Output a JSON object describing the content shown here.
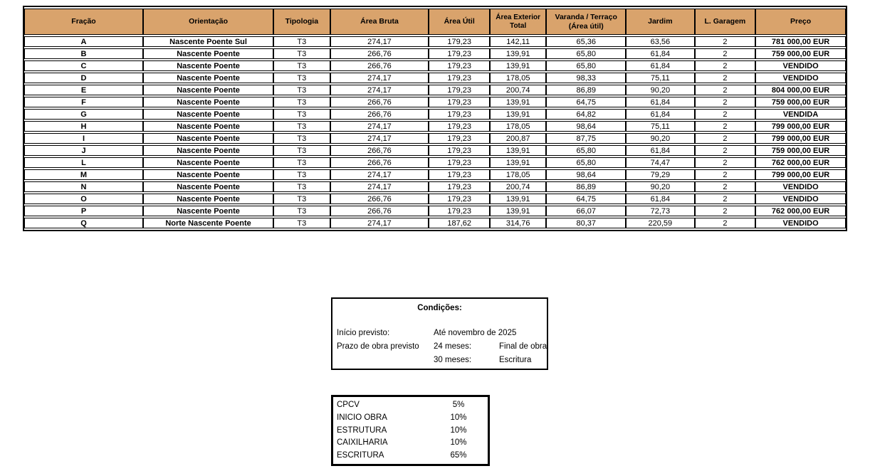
{
  "colors": {
    "header_bg": "#d9a36c",
    "border": "#000000"
  },
  "table": {
    "columns": [
      "Fração",
      "Orientação",
      "Tipologia",
      "Área Bruta",
      "Área Útil",
      "Área Exterior Total",
      "Varanda / Terraço (Área útil)",
      "Jardim",
      "L. Garagem",
      "Preço"
    ],
    "rows": [
      [
        "A",
        "Nascente Poente Sul",
        "T3",
        "274,17",
        "179,23",
        "142,11",
        "65,36",
        "63,56",
        "2",
        "781 000,00 EUR"
      ],
      [
        "B",
        "Nascente Poente",
        "T3",
        "266,76",
        "179,23",
        "139,91",
        "65,80",
        "61,84",
        "2",
        "759 000,00 EUR"
      ],
      [
        "C",
        "Nascente Poente",
        "T3",
        "266,76",
        "179,23",
        "139,91",
        "65,80",
        "61,84",
        "2",
        "VENDIDO"
      ],
      [
        "D",
        "Nascente Poente",
        "T3",
        "274,17",
        "179,23",
        "178,05",
        "98,33",
        "75,11",
        "2",
        "VENDIDO"
      ],
      [
        "E",
        "Nascente Poente",
        "T3",
        "274,17",
        "179,23",
        "200,74",
        "86,89",
        "90,20",
        "2",
        "804 000,00 EUR"
      ],
      [
        "F",
        "Nascente Poente",
        "T3",
        "266,76",
        "179,23",
        "139,91",
        "64,75",
        "61,84",
        "2",
        "759 000,00 EUR"
      ],
      [
        "G",
        "Nascente Poente",
        "T3",
        "266,76",
        "179,23",
        "139,91",
        "64,82",
        "61,84",
        "2",
        "VENDIDA"
      ],
      [
        "H",
        "Nascente Poente",
        "T3",
        "274,17",
        "179,23",
        "178,05",
        "98,64",
        "75,11",
        "2",
        "799 000,00 EUR"
      ],
      [
        "I",
        "Nascente Poente",
        "T3",
        "274,17",
        "179,23",
        "200,87",
        "87,75",
        "90,20",
        "2",
        "799 000,00 EUR"
      ],
      [
        "J",
        "Nascente Poente",
        "T3",
        "266,76",
        "179,23",
        "139,91",
        "65,80",
        "61,84",
        "2",
        "759 000,00 EUR"
      ],
      [
        "L",
        "Nascente Poente",
        "T3",
        "266,76",
        "179,23",
        "139,91",
        "65,80",
        "74,47",
        "2",
        "762 000,00 EUR"
      ],
      [
        "M",
        "Nascente Poente",
        "T3",
        "274,17",
        "179,23",
        "178,05",
        "98,64",
        "79,29",
        "2",
        "799 000,00 EUR"
      ],
      [
        "N",
        "Nascente Poente",
        "T3",
        "274,17",
        "179,23",
        "200,74",
        "86,89",
        "90,20",
        "2",
        "VENDIDO"
      ],
      [
        "O",
        "Nascente Poente",
        "T3",
        "266,76",
        "179,23",
        "139,91",
        "64,75",
        "61,84",
        "2",
        "VENDIDO"
      ],
      [
        "P",
        "Nascente Poente",
        "T3",
        "266,76",
        "179,23",
        "139,91",
        "66,07",
        "72,73",
        "2",
        "762 000,00 EUR"
      ],
      [
        "Q",
        "Norte Nascente Poente",
        "T3",
        "274,17",
        "187,62",
        "314,76",
        "80,37",
        "220,59",
        "2",
        "VENDIDO"
      ]
    ]
  },
  "conditions": {
    "title": "Condições:",
    "rows": [
      {
        "label": "Início previsto:",
        "mid": "Até novembro de 2025",
        "right": ""
      },
      {
        "label": "Prazo de obra previsto",
        "mid": "24 meses:",
        "right": "Final de obra"
      },
      {
        "label": "",
        "mid": "30 meses:",
        "right": "Escritura"
      }
    ]
  },
  "payments": {
    "rows": [
      {
        "label": "CPCV",
        "value": "5%"
      },
      {
        "label": "INICIO OBRA",
        "value": "10%"
      },
      {
        "label": "ESTRUTURA",
        "value": "10%"
      },
      {
        "label": "CAIXILHARIA",
        "value": "10%"
      },
      {
        "label": "ESCRITURA",
        "value": "65%"
      }
    ]
  }
}
